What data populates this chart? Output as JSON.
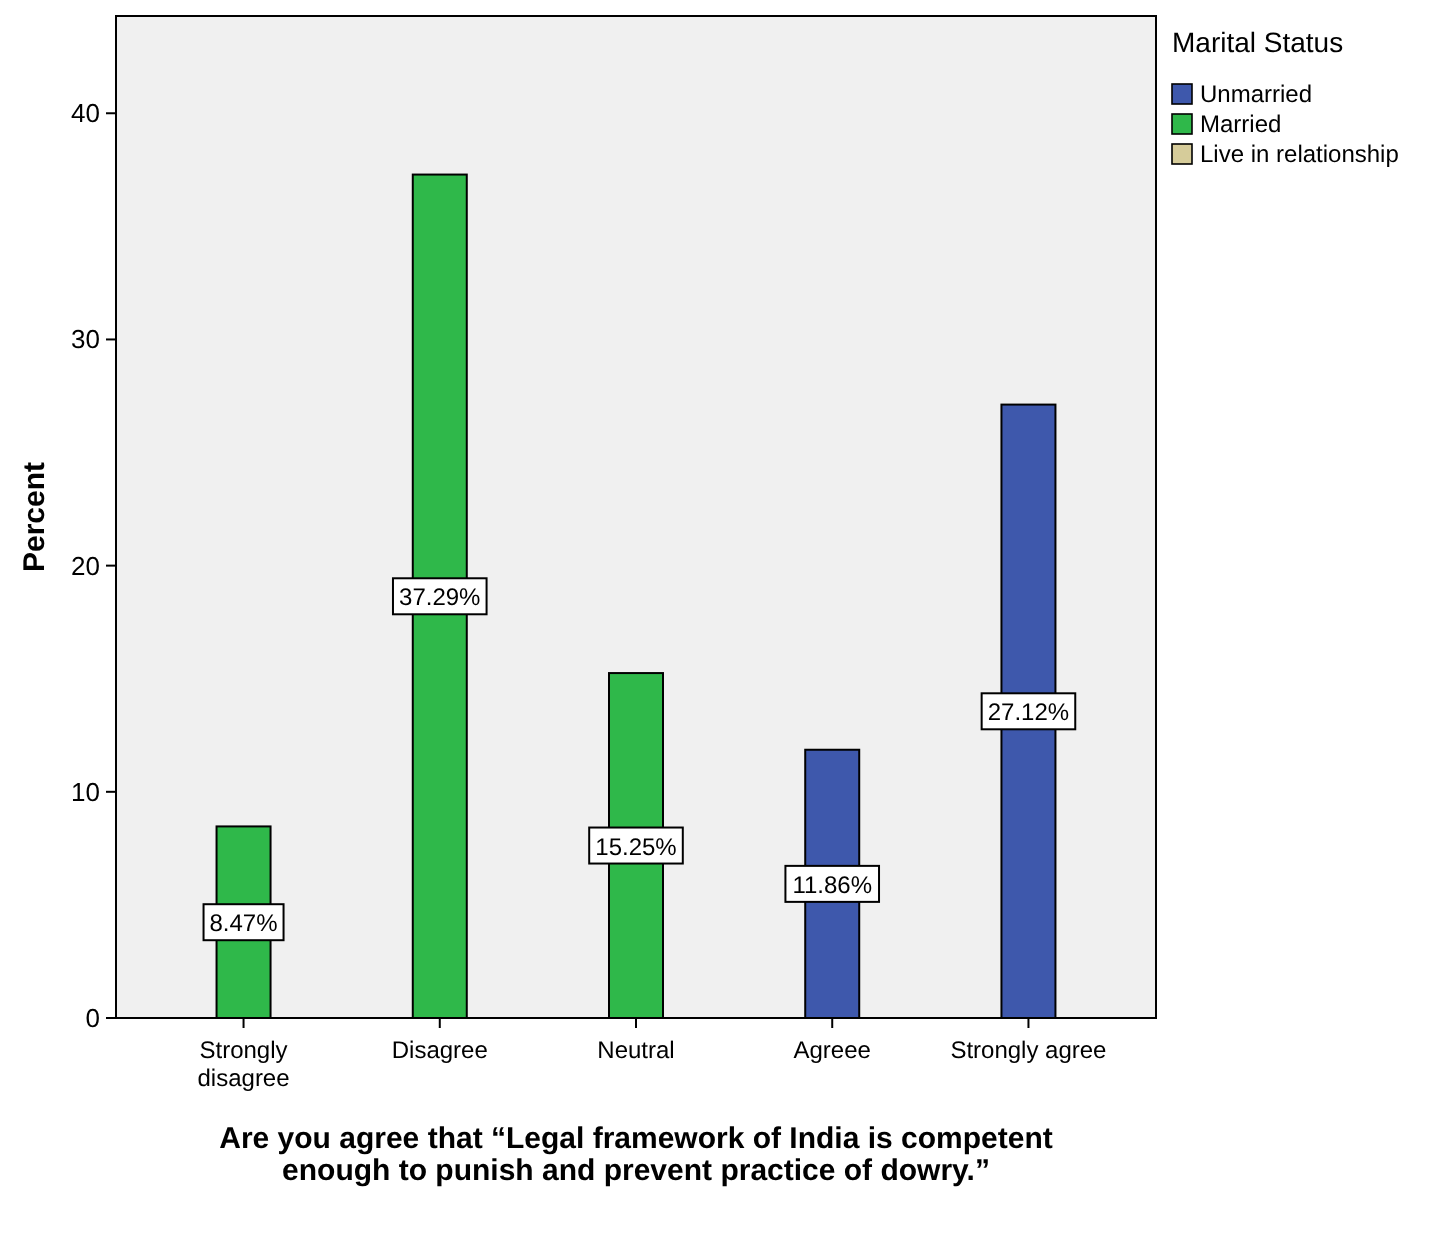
{
  "chart_data": {
    "type": "bar",
    "xlabel": "Are you agree that “Legal framework of India is competent enough to punish and prevent practice of dowry.”",
    "ylabel": "Percent",
    "legend_title": "Marital Status",
    "legend": "top right",
    "categories": [
      "Strongly disagree",
      "Disagree",
      "Neutral",
      "Agreee",
      "Strongly agree"
    ],
    "series": [
      {
        "name": "Unmarried",
        "color": "#3e58ac",
        "values": [
          null,
          null,
          null,
          11.86,
          27.12
        ],
        "value_labels": [
          null,
          null,
          null,
          "11.86%",
          "27.12%"
        ]
      },
      {
        "name": "Married",
        "color": "#2fb84a",
        "values": [
          8.47,
          37.29,
          15.25,
          null,
          null
        ],
        "value_labels": [
          "8.47%",
          "37.29%",
          "15.25%",
          null,
          null
        ]
      },
      {
        "name": "Live in relationship",
        "color": "#d6cc9a",
        "values": [
          null,
          null,
          null,
          null,
          null
        ]
      }
    ],
    "ylim": [
      0,
      44.3
    ],
    "yticks": [
      0,
      10,
      20,
      30,
      40
    ],
    "grid": false
  }
}
